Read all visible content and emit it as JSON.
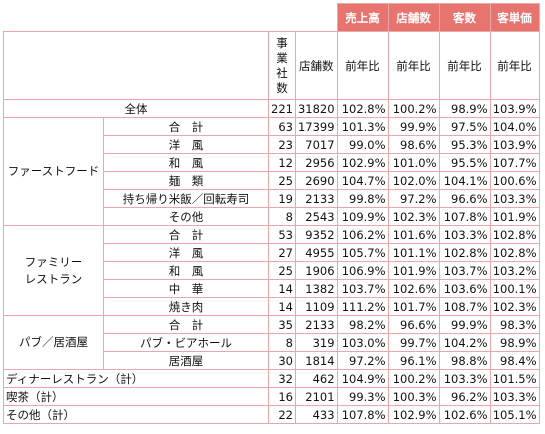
{
  "headers": {
    "uriage": "売上高",
    "tenpo": "店舗数",
    "kyaku": "客数",
    "kyakutanka": "客単価",
    "jigyosha": "事業社数",
    "tenposu": "店舗数",
    "zennenhi": "前年比"
  },
  "total": {
    "label": "全体",
    "n": "221",
    "stores": "31820",
    "sales": "102.8%",
    "st": "100.2%",
    "cust": "98.9%",
    "unit": "103.9%"
  },
  "groups": [
    {
      "label": "ファーストフード",
      "rows": [
        {
          "label": "合　計",
          "n": "63",
          "stores": "17399",
          "sales": "101.3%",
          "st": "99.9%",
          "cust": "97.5%",
          "unit": "104.0%"
        },
        {
          "label": "洋　風",
          "n": "23",
          "stores": "7017",
          "sales": "99.0%",
          "st": "98.6%",
          "cust": "95.3%",
          "unit": "103.9%"
        },
        {
          "label": "和　風",
          "n": "12",
          "stores": "2956",
          "sales": "102.9%",
          "st": "101.0%",
          "cust": "95.5%",
          "unit": "107.7%"
        },
        {
          "label": "麺　類",
          "n": "25",
          "stores": "2690",
          "sales": "104.7%",
          "st": "102.0%",
          "cust": "104.1%",
          "unit": "100.6%"
        },
        {
          "label": "持ち帰り米飯／回転寿司",
          "n": "19",
          "stores": "2133",
          "sales": "99.8%",
          "st": "97.2%",
          "cust": "96.6%",
          "unit": "103.3%"
        },
        {
          "label": "その他",
          "n": "8",
          "stores": "2543",
          "sales": "109.9%",
          "st": "102.3%",
          "cust": "107.8%",
          "unit": "101.9%"
        }
      ]
    },
    {
      "label": "ファミリー\nレストラン",
      "rows": [
        {
          "label": "合　計",
          "n": "53",
          "stores": "9352",
          "sales": "106.2%",
          "st": "101.6%",
          "cust": "103.3%",
          "unit": "102.8%"
        },
        {
          "label": "洋　風",
          "n": "27",
          "stores": "4955",
          "sales": "105.7%",
          "st": "101.1%",
          "cust": "102.8%",
          "unit": "102.8%"
        },
        {
          "label": "和　風",
          "n": "25",
          "stores": "1906",
          "sales": "106.9%",
          "st": "101.9%",
          "cust": "103.7%",
          "unit": "103.2%"
        },
        {
          "label": "中　華",
          "n": "14",
          "stores": "1382",
          "sales": "103.7%",
          "st": "102.6%",
          "cust": "103.6%",
          "unit": "100.1%"
        },
        {
          "label": "焼き肉",
          "n": "14",
          "stores": "1109",
          "sales": "111.2%",
          "st": "101.7%",
          "cust": "108.7%",
          "unit": "102.3%"
        }
      ]
    },
    {
      "label": "パブ／居酒屋",
      "rows": [
        {
          "label": "合　計",
          "n": "35",
          "stores": "2133",
          "sales": "98.2%",
          "st": "96.6%",
          "cust": "99.9%",
          "unit": "98.3%"
        },
        {
          "label": "パブ・ビアホール",
          "n": "8",
          "stores": "319",
          "sales": "103.0%",
          "st": "99.7%",
          "cust": "104.2%",
          "unit": "98.9%"
        },
        {
          "label": "居酒屋",
          "n": "30",
          "stores": "1814",
          "sales": "97.2%",
          "st": "96.1%",
          "cust": "98.8%",
          "unit": "98.4%"
        }
      ]
    }
  ],
  "singles": [
    {
      "label": "ディナーレストラン（計）",
      "n": "32",
      "stores": "462",
      "sales": "104.9%",
      "st": "100.2%",
      "cust": "103.3%",
      "unit": "101.5%"
    },
    {
      "label": "喫茶（計）",
      "n": "16",
      "stores": "2101",
      "sales": "99.3%",
      "st": "100.3%",
      "cust": "96.2%",
      "unit": "103.3%"
    },
    {
      "label": "その他（計）",
      "n": "22",
      "stores": "433",
      "sales": "107.8%",
      "st": "102.9%",
      "cust": "102.6%",
      "unit": "105.1%"
    }
  ]
}
